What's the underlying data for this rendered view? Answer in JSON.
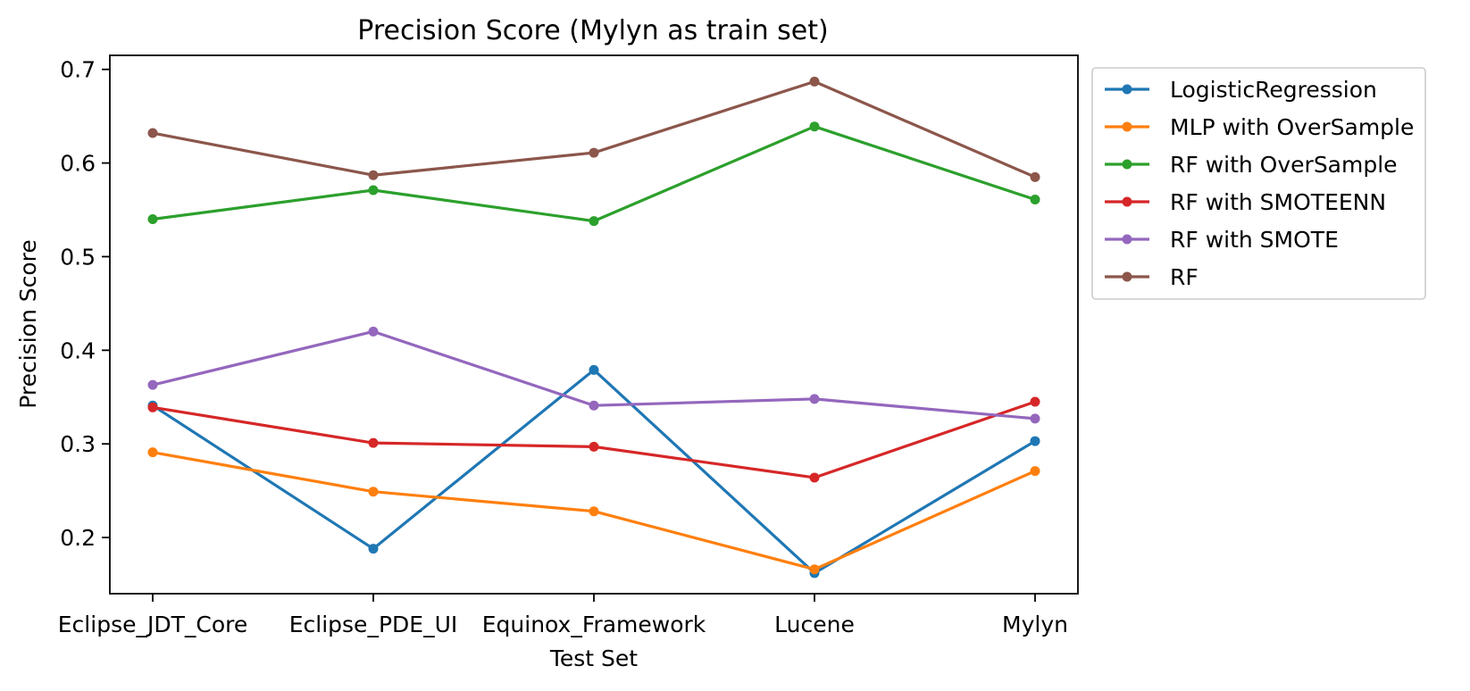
{
  "chart_data": {
    "type": "line",
    "title": "Precision Score (Mylyn as train set)",
    "xlabel": "Test Set",
    "ylabel": "Precision Score",
    "categories": [
      "Eclipse_JDT_Core",
      "Eclipse_PDE_UI",
      "Equinox_Framework",
      "Lucene",
      "Mylyn"
    ],
    "ylim": [
      0.14,
      0.715
    ],
    "yticks": [
      0.2,
      0.3,
      0.4,
      0.5,
      0.6,
      0.7
    ],
    "ytick_labels": [
      "0.2",
      "0.3",
      "0.4",
      "0.5",
      "0.6",
      "0.7"
    ],
    "grid": false,
    "legend_position": "outside upper right",
    "series": [
      {
        "name": "LogisticRegression",
        "color": "#1f77b4",
        "values": [
          0.341,
          0.188,
          0.379,
          0.162,
          0.303
        ]
      },
      {
        "name": "MLP with OverSample",
        "color": "#ff7f0e",
        "values": [
          0.291,
          0.249,
          0.228,
          0.166,
          0.271
        ]
      },
      {
        "name": "RF with OverSample",
        "color": "#2ca02c",
        "values": [
          0.54,
          0.571,
          0.538,
          0.639,
          0.561
        ]
      },
      {
        "name": "RF with SMOTEENN",
        "color": "#d62728",
        "values": [
          0.339,
          0.301,
          0.297,
          0.264,
          0.345
        ]
      },
      {
        "name": "RF with SMOTE",
        "color": "#9467bd",
        "values": [
          0.363,
          0.42,
          0.341,
          0.348,
          0.327
        ]
      },
      {
        "name": "RF",
        "color": "#8c564b",
        "values": [
          0.632,
          0.587,
          0.611,
          0.687,
          0.585
        ]
      }
    ]
  }
}
